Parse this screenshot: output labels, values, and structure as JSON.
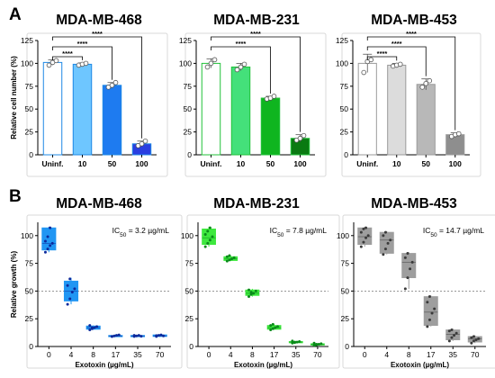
{
  "panel_labels": {
    "a": "A",
    "b": "B"
  },
  "chart_data": [
    {
      "type": "bar",
      "title": "MDA-MB-468",
      "ylabel": "Relative cell number (%)",
      "xlabel": "",
      "ylim": [
        0,
        125
      ],
      "yticks": [
        0,
        25,
        50,
        75,
        100,
        125
      ],
      "categories": [
        "Uninf.",
        "10",
        "50",
        "100"
      ],
      "values": [
        101,
        99,
        76,
        12
      ],
      "errors": [
        3,
        1.5,
        3,
        3
      ],
      "points": [
        [
          98,
          101,
          103
        ],
        [
          98,
          99,
          100
        ],
        [
          74,
          76,
          79
        ],
        [
          10,
          12,
          15
        ]
      ],
      "colors": [
        "#ffffff",
        "#6ec6ff",
        "#1e7bf0",
        "#2a3ee0"
      ],
      "edge_color": "#1e88e5",
      "significance": [
        "****",
        "****",
        "****"
      ]
    },
    {
      "type": "bar",
      "title": "MDA-MB-231",
      "ylabel": "",
      "xlabel": "",
      "ylim": [
        0,
        125
      ],
      "yticks": [
        0,
        25,
        50,
        75,
        100,
        125
      ],
      "categories": [
        "Uninf.",
        "10",
        "50",
        "100"
      ],
      "values": [
        100,
        96,
        62,
        18
      ],
      "errors": [
        5,
        4,
        2,
        4
      ],
      "points": [
        [
          96,
          100,
          104
        ],
        [
          93,
          96,
          99
        ],
        [
          61,
          62,
          64
        ],
        [
          16,
          18,
          21
        ]
      ],
      "colors": [
        "#ffffff",
        "#44e07a",
        "#0fb51f",
        "#0a7a12"
      ],
      "edge_color": "#22c23a",
      "significance": [
        "****",
        "****"
      ]
    },
    {
      "type": "bar",
      "title": "MDA-MB-453",
      "ylabel": "",
      "xlabel": "",
      "ylim": [
        0,
        125
      ],
      "yticks": [
        0,
        25,
        50,
        75,
        100,
        125
      ],
      "categories": [
        "Uninf.",
        "10",
        "50",
        "100"
      ],
      "values": [
        100,
        98,
        77,
        22
      ],
      "errors": [
        10,
        2,
        6,
        2
      ],
      "points": [
        [
          90,
          102,
          104
        ],
        [
          97,
          98,
          99
        ],
        [
          74,
          78,
          81
        ],
        [
          20,
          22,
          23
        ]
      ],
      "colors": [
        "#ffffff",
        "#dcdcdc",
        "#b8b8b8",
        "#8e8e8e"
      ],
      "edge_color": "#9a9a9a",
      "significance": [
        "****",
        "****",
        "****"
      ]
    },
    {
      "type": "box",
      "title": "MDA-MB-468",
      "ylabel": "Relative growth (%)",
      "xlabel": "Exotoxin (µg/mL)",
      "annotation": "IC",
      "annotation_sub": "50",
      "annotation_value": " = 3.2 µg/mL",
      "ylim": [
        0,
        112
      ],
      "yticks": [
        0,
        25,
        50,
        75,
        100
      ],
      "categories": [
        "0",
        "4",
        "8",
        "17",
        "35",
        "70"
      ],
      "color": "#2196f3",
      "point_color": "#0d2a9c",
      "boxes": [
        {
          "min": 85,
          "q1": 87,
          "median": 93,
          "q3": 107,
          "max": 108,
          "points": [
            85,
            88,
            91,
            93,
            95,
            99,
            107
          ]
        },
        {
          "min": 38,
          "q1": 41,
          "median": 50,
          "q3": 59,
          "max": 62,
          "points": [
            38,
            43,
            49,
            52,
            55,
            61
          ]
        },
        {
          "min": 15,
          "q1": 15.5,
          "median": 17,
          "q3": 18.5,
          "max": 19,
          "points": [
            15,
            16,
            17,
            18,
            19,
            17
          ]
        },
        {
          "min": 8.5,
          "q1": 9,
          "median": 9.5,
          "q3": 10,
          "max": 11,
          "points": [
            9,
            9.5,
            10,
            10.5,
            9
          ]
        },
        {
          "min": 8.5,
          "q1": 9,
          "median": 9.5,
          "q3": 10,
          "max": 10.5,
          "points": [
            9,
            9.5,
            10,
            9.2,
            10
          ]
        },
        {
          "min": 8.5,
          "q1": 9,
          "median": 9.5,
          "q3": 10.5,
          "max": 11,
          "points": [
            9,
            10,
            10.5,
            9.5,
            9.8
          ]
        }
      ],
      "reference_line": 50
    },
    {
      "type": "box",
      "title": "MDA-MB-231",
      "ylabel": "",
      "xlabel": "Exotoxin (µg/mL)",
      "annotation": "IC",
      "annotation_sub": "50",
      "annotation_value": " = 7.8 µg/mL",
      "ylim": [
        0,
        112
      ],
      "yticks": [
        0,
        25,
        50,
        75,
        100
      ],
      "categories": [
        "0",
        "4",
        "8",
        "17",
        "35",
        "70"
      ],
      "color": "#3ee83e",
      "point_color": "#0a8a1a",
      "boxes": [
        {
          "min": 90,
          "q1": 92,
          "median": 98,
          "q3": 106,
          "max": 108,
          "points": [
            90,
            93,
            96,
            99,
            101,
            104,
            107
          ]
        },
        {
          "min": 77,
          "q1": 77.5,
          "median": 79,
          "q3": 81,
          "max": 82,
          "points": [
            77,
            78,
            79,
            80,
            81,
            82
          ]
        },
        {
          "min": 45,
          "q1": 46,
          "median": 48,
          "q3": 51,
          "max": 52,
          "points": [
            45,
            47,
            48,
            50,
            51,
            49
          ]
        },
        {
          "min": 15,
          "q1": 15.5,
          "median": 17,
          "q3": 19,
          "max": 20,
          "points": [
            15,
            16,
            17,
            18,
            19,
            20
          ]
        },
        {
          "min": 3,
          "q1": 3.5,
          "median": 4,
          "q3": 4.5,
          "max": 5,
          "points": [
            3,
            3.5,
            4,
            4.5,
            5,
            4
          ]
        },
        {
          "min": 1,
          "q1": 1.5,
          "median": 2,
          "q3": 2.5,
          "max": 3,
          "points": [
            1,
            1.5,
            2,
            2.5,
            3,
            2
          ]
        }
      ],
      "reference_line": 50
    },
    {
      "type": "box",
      "title": "MDA-MB-453",
      "ylabel": "",
      "xlabel": "Exotoxin (µg/mL)",
      "annotation": "IC",
      "annotation_sub": "50",
      "annotation_value": " = 14.7 µg/mL",
      "ylim": [
        0,
        112
      ],
      "yticks": [
        0,
        25,
        50,
        75,
        100
      ],
      "categories": [
        "0",
        "4",
        "8",
        "17",
        "35",
        "70"
      ],
      "color": "#9e9e9e",
      "point_color": "#3a3a3a",
      "boxes": [
        {
          "min": 90,
          "q1": 92,
          "median": 99,
          "q3": 107,
          "max": 108,
          "points": [
            90,
            94,
            98,
            100,
            103,
            106,
            107
          ]
        },
        {
          "min": 83,
          "q1": 84,
          "median": 96,
          "q3": 103,
          "max": 104,
          "points": [
            83,
            88,
            93,
            96,
            100,
            103
          ]
        },
        {
          "min": 52,
          "q1": 62,
          "median": 76,
          "q3": 84,
          "max": 85,
          "points": [
            52,
            62,
            70,
            76,
            80,
            84
          ]
        },
        {
          "min": 18,
          "q1": 19,
          "median": 31,
          "q3": 45,
          "max": 46,
          "points": [
            18,
            24,
            30,
            34,
            40,
            45
          ]
        },
        {
          "min": 5,
          "q1": 6,
          "median": 11,
          "q3": 15,
          "max": 16,
          "points": [
            5,
            8,
            10,
            12,
            14,
            15
          ]
        },
        {
          "min": 3,
          "q1": 4,
          "median": 7,
          "q3": 9,
          "max": 10,
          "points": [
            3,
            5,
            6,
            7,
            8,
            9
          ]
        }
      ],
      "reference_line": 50
    }
  ]
}
